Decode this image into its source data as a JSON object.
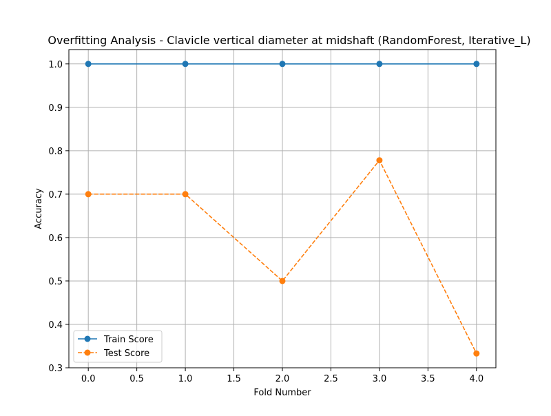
{
  "chart_data": {
    "type": "line",
    "title": "Overfitting Analysis - Clavicle vertical diameter at midshaft (RandomForest, Iterative_L)",
    "xlabel": "Fold Number",
    "ylabel": "Accuracy",
    "x": [
      0,
      1,
      2,
      3,
      4
    ],
    "xlim": [
      -0.2,
      4.2
    ],
    "ylim": [
      0.3,
      1.033
    ],
    "x_ticks": [
      0.0,
      0.5,
      1.0,
      1.5,
      2.0,
      2.5,
      3.0,
      3.5,
      4.0
    ],
    "y_ticks": [
      0.3,
      0.4,
      0.5,
      0.6,
      0.7,
      0.8,
      0.9,
      1.0
    ],
    "x_tick_labels": [
      "0.0",
      "0.5",
      "1.0",
      "1.5",
      "2.0",
      "2.5",
      "3.0",
      "3.5",
      "4.0"
    ],
    "y_tick_labels": [
      "0.3",
      "0.4",
      "0.5",
      "0.6",
      "0.7",
      "0.8",
      "0.9",
      "1.0"
    ],
    "grid": true,
    "legend_position": "lower-left",
    "series": [
      {
        "name": "Train Score",
        "values": [
          1.0,
          1.0,
          1.0,
          1.0,
          1.0
        ],
        "color": "#1f77b4",
        "line_style": "solid",
        "marker": "circle"
      },
      {
        "name": "Test Score",
        "values": [
          0.7,
          0.7,
          0.5,
          0.778,
          0.333
        ],
        "color": "#ff7f0e",
        "line_style": "dashed",
        "marker": "circle"
      }
    ]
  }
}
